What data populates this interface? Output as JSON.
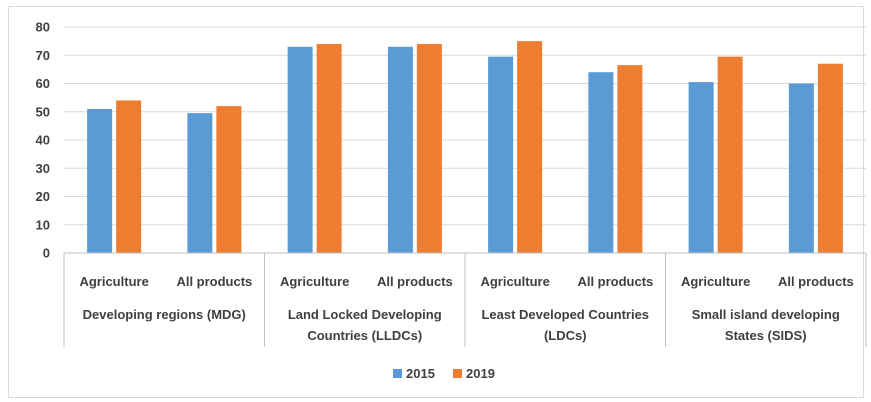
{
  "chart_data": {
    "type": "bar",
    "title": "",
    "xlabel": "",
    "ylabel": "",
    "ylim": [
      0,
      80
    ],
    "yticks": [
      0,
      10,
      20,
      30,
      40,
      50,
      60,
      70,
      80
    ],
    "grid": true,
    "legend_position": "bottom",
    "groups": [
      {
        "label_lines": [
          "Developing regions (MDG)"
        ],
        "categories": [
          "Agriculture",
          "All products"
        ]
      },
      {
        "label_lines": [
          "Land Locked Developing",
          "Countries (LLDCs)"
        ],
        "categories": [
          "Agriculture",
          "All products"
        ]
      },
      {
        "label_lines": [
          "Least Developed Countries",
          "(LDCs)"
        ],
        "categories": [
          "Agriculture",
          "All products"
        ]
      },
      {
        "label_lines": [
          "Small island developing",
          "States (SIDS)"
        ],
        "categories": [
          "Agriculture",
          "All products"
        ]
      }
    ],
    "series": [
      {
        "name": "2015",
        "color": "#5b9bd5",
        "values": [
          51,
          49.5,
          73,
          73,
          69.5,
          64,
          60.5,
          60
        ]
      },
      {
        "name": "2019",
        "color": "#ed7d31",
        "values": [
          54,
          52,
          74,
          74,
          75,
          66.5,
          69.5,
          67
        ]
      }
    ]
  }
}
